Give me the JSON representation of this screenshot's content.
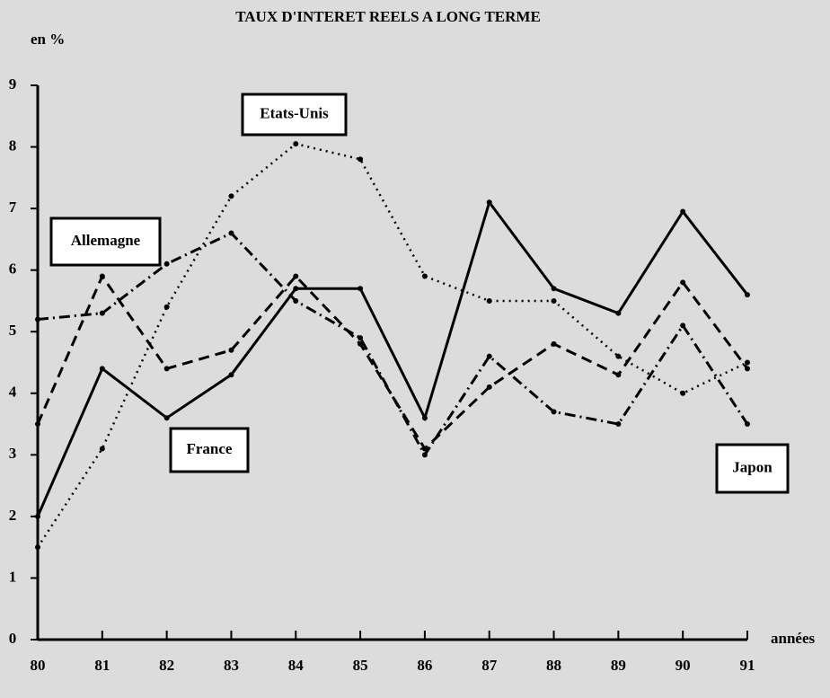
{
  "chart_data": {
    "type": "line",
    "title": "TAUX D'INTERET REELS A LONG TERME",
    "y_label": "en %",
    "x_label": "années",
    "categories": [
      "80",
      "81",
      "82",
      "83",
      "84",
      "85",
      "86",
      "87",
      "88",
      "89",
      "90",
      "91"
    ],
    "ylim": [
      0,
      9
    ],
    "yticks": [
      0,
      1,
      2,
      3,
      4,
      5,
      6,
      7,
      8,
      9
    ],
    "series": [
      {
        "name": "France",
        "color": "#000000",
        "style": "solid",
        "values": [
          2.0,
          4.4,
          3.6,
          4.3,
          5.7,
          5.7,
          3.6,
          7.1,
          5.7,
          5.3,
          6.95,
          5.6
        ]
      },
      {
        "name": "Etats-Unis",
        "color": "#000000",
        "style": "dotted",
        "values": [
          1.5,
          3.1,
          5.4,
          7.2,
          8.05,
          7.8,
          5.9,
          5.5,
          5.5,
          4.6,
          4.0,
          4.5
        ]
      },
      {
        "name": "Allemagne",
        "color": "#000000",
        "style": "dashed",
        "values": [
          3.5,
          5.9,
          4.4,
          4.7,
          5.9,
          4.8,
          3.1,
          4.1,
          4.8,
          4.3,
          5.8,
          4.4
        ]
      },
      {
        "name": "Japon",
        "color": "#000000",
        "style": "dashdot",
        "values": [
          5.2,
          5.3,
          6.1,
          6.6,
          5.5,
          4.9,
          3.0,
          4.6,
          3.7,
          3.5,
          5.1,
          3.5
        ]
      }
    ]
  }
}
